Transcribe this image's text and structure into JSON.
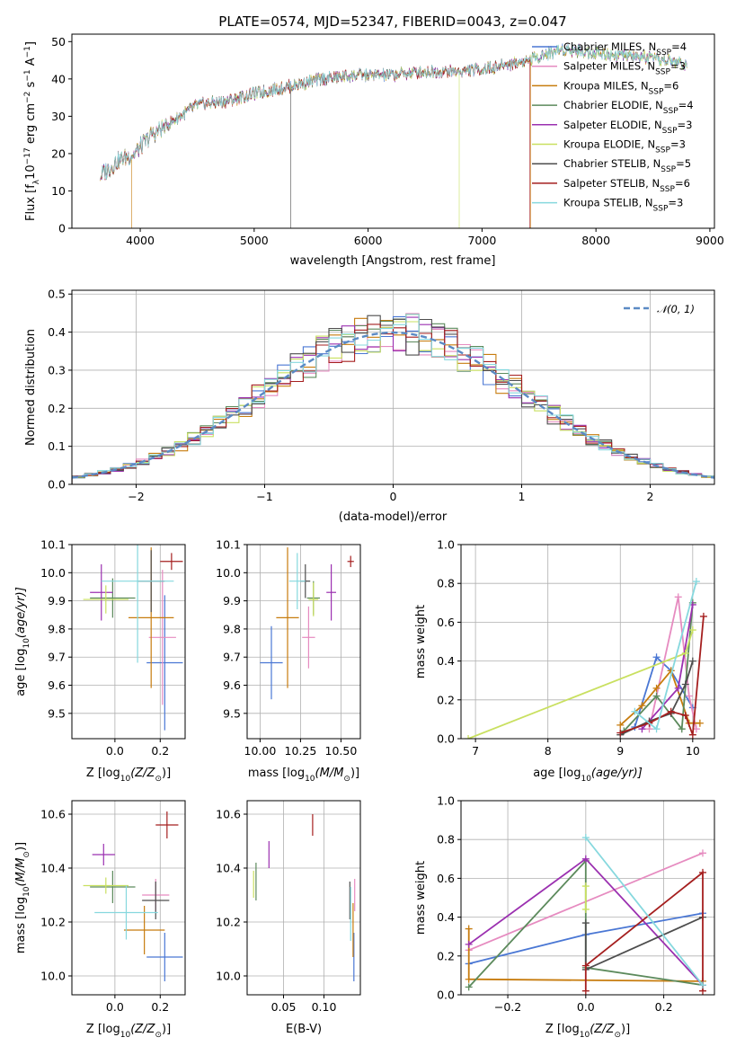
{
  "title": "PLATE=0574, MJD=52347, FIBERID=0043, z=0.047",
  "models": [
    {
      "name": "Chabrier MILES, N",
      "nssp": "=4",
      "color": "#4a77d4"
    },
    {
      "name": "Salpeter MILES, N",
      "nssp": "=3",
      "color": "#e68bc0"
    },
    {
      "name": "Kroupa MILES, N",
      "nssp": "=6",
      "color": "#c77c0e"
    },
    {
      "name": "Chabrier ELODIE, N",
      "nssp": "=4",
      "color": "#5c8a5c"
    },
    {
      "name": "Salpeter ELODIE, N",
      "nssp": "=3",
      "color": "#9b30b0"
    },
    {
      "name": "Kroupa ELODIE, N",
      "nssp": "=3",
      "color": "#c9e060"
    },
    {
      "name": "Chabrier STELIB, N",
      "nssp": "=5",
      "color": "#4d4d4d"
    },
    {
      "name": "Salpeter STELIB, N",
      "nssp": "=6",
      "color": "#a51f1f"
    },
    {
      "name": "Kroupa STELIB, N",
      "nssp": "=3",
      "color": "#86d8de"
    }
  ],
  "nssp_sub": "SSP",
  "chart_data": [
    {
      "id": "spectrum",
      "type": "line",
      "xlabel": "wavelength [Angstrom, rest frame]",
      "ylabel": "Flux [f",
      "ylabel_parts": [
        "Flux [f",
        "λ",
        "10",
        "−17",
        " erg cm",
        "−2",
        " s",
        "−1",
        " A",
        "−1",
        "]"
      ],
      "xlim": [
        3400,
        9040
      ],
      "ylim": [
        0,
        52
      ],
      "xticks": [
        4000,
        5000,
        6000,
        7000,
        8000,
        9000
      ],
      "yticks": [
        0,
        10,
        20,
        30,
        40,
        50
      ],
      "continuum_x": [
        3650,
        3800,
        3950,
        4100,
        4300,
        4500,
        4750,
        5000,
        5300,
        5600,
        5900,
        6200,
        6500,
        6800,
        7100,
        7400,
        7700,
        8000,
        8300,
        8600,
        8800
      ],
      "continuum_y": [
        14,
        18,
        20,
        25,
        29,
        33,
        34,
        36,
        38,
        40,
        41,
        41,
        42,
        42,
        43,
        45,
        48,
        47,
        46,
        45,
        44
      ],
      "dropouts": [
        {
          "model": 2,
          "x": 3925,
          "to": 0
        },
        {
          "model": 6,
          "x": 5320,
          "to": 0
        },
        {
          "model": 5,
          "x": 6800,
          "to": 0
        },
        {
          "model": 7,
          "x": 7420,
          "to": 0
        },
        {
          "model": 2,
          "x": 7425,
          "to": 0
        }
      ],
      "spectrum_end": {
        "default": 8800,
        "truncated": [
          {
            "model": 7,
            "x": 7420
          }
        ]
      },
      "legend_loc": "upper-right",
      "grid": false
    },
    {
      "id": "residuals",
      "type": "histogram",
      "xlabel": "(data-model)/error",
      "ylabel": "Normed distribution",
      "xlim": [
        -2.5,
        2.5
      ],
      "ylim": [
        0,
        0.51
      ],
      "xticks": [
        -2,
        -1,
        0,
        1,
        2
      ],
      "yticks": [
        0,
        0.1,
        0.2,
        0.3,
        0.4,
        0.5
      ],
      "bin_width": 0.1,
      "bin_start": -2.5,
      "reference": {
        "label": "𝒩(0, 1)",
        "type": "dashed",
        "color": "#5b8ac4"
      },
      "grid": true
    },
    {
      "id": "z-age",
      "type": "scatter-errorbar",
      "xlabel": "Z [log",
      "xlabel_parts": [
        "Z [log",
        "10",
        "(Z/Z",
        "⊙",
        ")]"
      ],
      "ylabel_parts": [
        "age  [log",
        "10",
        "(age/yr)]"
      ],
      "xlim": [
        -0.19,
        0.31
      ],
      "ylim": [
        9.41,
        10.1
      ],
      "xticks": [
        0.0,
        0.2
      ],
      "yticks": [
        9.5,
        9.6,
        9.7,
        9.8,
        9.9,
        10.0,
        10.1
      ],
      "points": [
        {
          "model": 0,
          "x": 0.22,
          "xe": 0.08,
          "y": 9.68,
          "ye": 0.24
        },
        {
          "model": 1,
          "x": 0.21,
          "xe": 0.06,
          "y": 9.77,
          "ye": 0.24
        },
        {
          "model": 2,
          "x": 0.16,
          "xe": 0.1,
          "y": 9.84,
          "ye": 0.25
        },
        {
          "model": 3,
          "x": -0.01,
          "xe": 0.1,
          "y": 9.91,
          "ye": 0.07
        },
        {
          "model": 4,
          "x": -0.06,
          "xe": 0.05,
          "y": 9.93,
          "ye": 0.1
        },
        {
          "model": 5,
          "x": -0.04,
          "xe": 0.1,
          "y": 9.905,
          "ye": 0.05
        },
        {
          "model": 6,
          "x": 0.16,
          "xe": 0.06,
          "y": 9.97,
          "ye": 0.11
        },
        {
          "model": 7,
          "x": 0.25,
          "xe": 0.05,
          "y": 10.04,
          "ye": 0.03
        },
        {
          "model": 8,
          "x": 0.1,
          "xe": 0.16,
          "y": 9.97,
          "ye": 0.29
        }
      ]
    },
    {
      "id": "mass-age",
      "type": "scatter-errorbar",
      "xlabel_parts": [
        "mass [log",
        "10",
        "(M/M",
        "⊙",
        ")]"
      ],
      "xlim": [
        9.92,
        10.62
      ],
      "ylim": [
        9.41,
        10.1
      ],
      "xticks": [
        10.0,
        10.25,
        10.5
      ],
      "xtick_labels": [
        "10.00",
        "10.25",
        "10.50"
      ],
      "yticks": [
        9.5,
        9.6,
        9.7,
        9.8,
        9.9,
        10.0,
        10.1
      ],
      "points": [
        {
          "model": 0,
          "x": 10.07,
          "xe": 0.07,
          "y": 9.68,
          "ye": 0.13
        },
        {
          "model": 1,
          "x": 10.3,
          "xe": 0.04,
          "y": 9.77,
          "ye": 0.11
        },
        {
          "model": 2,
          "x": 10.17,
          "xe": 0.07,
          "y": 9.84,
          "ye": 0.25
        },
        {
          "model": 3,
          "x": 10.33,
          "xe": 0.04,
          "y": 9.91,
          "ye": 0.06
        },
        {
          "model": 4,
          "x": 10.44,
          "xe": 0.03,
          "y": 9.93,
          "ye": 0.1
        },
        {
          "model": 5,
          "x": 10.33,
          "xe": 0.03,
          "y": 9.905,
          "ye": 0.06
        },
        {
          "model": 6,
          "x": 10.28,
          "xe": 0.03,
          "y": 9.97,
          "ye": 0.06
        },
        {
          "model": 7,
          "x": 10.56,
          "xe": 0.02,
          "y": 10.04,
          "ye": 0.02
        },
        {
          "model": 8,
          "x": 10.23,
          "xe": 0.05,
          "y": 9.97,
          "ye": 0.1
        }
      ]
    },
    {
      "id": "age-weight",
      "type": "line",
      "xlabel_parts": [
        "age  [log",
        "10",
        "(age/yr)]"
      ],
      "ylabel": "mass weight",
      "xlim": [
        6.8,
        10.3
      ],
      "ylim": [
        0,
        1.0
      ],
      "xticks": [
        7,
        8,
        9,
        10
      ],
      "yticks": [
        0,
        0.2,
        0.4,
        0.6,
        0.8,
        1.0
      ],
      "grid": true,
      "series": [
        {
          "model": 0,
          "x": [
            9.2,
            9.5,
            9.7,
            10.0
          ],
          "y": [
            0.06,
            0.42,
            0.35,
            0.16
          ]
        },
        {
          "model": 1,
          "x": [
            9.4,
            9.8,
            9.95,
            10.05
          ],
          "y": [
            0.05,
            0.73,
            0.22,
            0.05
          ]
        },
        {
          "model": 2,
          "x": [
            9.0,
            9.3,
            9.5,
            9.7,
            9.95,
            10.1
          ],
          "y": [
            0.07,
            0.17,
            0.26,
            0.35,
            0.08,
            0.08
          ]
        },
        {
          "model": 3,
          "x": [
            9.05,
            9.5,
            9.85,
            10.0
          ],
          "y": [
            0.04,
            0.22,
            0.05,
            0.7
          ]
        },
        {
          "model": 4,
          "x": [
            9.3,
            9.8,
            10.0
          ],
          "y": [
            0.05,
            0.26,
            0.69
          ]
        },
        {
          "model": 5,
          "x": [
            6.9,
            9.9,
            10.0
          ],
          "y": [
            0.0,
            0.44,
            0.56
          ]
        },
        {
          "model": 6,
          "x": [
            9.0,
            9.4,
            9.7,
            9.9,
            10.0
          ],
          "y": [
            0.02,
            0.09,
            0.13,
            0.28,
            0.4
          ]
        },
        {
          "model": 7,
          "x": [
            9.0,
            9.4,
            9.7,
            9.9,
            10.0,
            10.15
          ],
          "y": [
            0.03,
            0.08,
            0.14,
            0.12,
            0.02,
            0.63
          ]
        },
        {
          "model": 8,
          "x": [
            9.2,
            9.5,
            10.05
          ],
          "y": [
            0.14,
            0.05,
            0.81
          ]
        }
      ]
    },
    {
      "id": "z-mass",
      "type": "scatter-errorbar",
      "xlabel_parts": [
        "Z [log",
        "10",
        "(Z/Z",
        "⊙",
        ")]"
      ],
      "ylabel_parts": [
        "mass [log",
        "10",
        "(M/M",
        "⊙",
        ")]"
      ],
      "xlim": [
        -0.19,
        0.31
      ],
      "ylim": [
        9.93,
        10.65
      ],
      "xticks": [
        0.0,
        0.2
      ],
      "yticks": [
        10.0,
        10.2,
        10.4,
        10.6
      ],
      "points": [
        {
          "model": 0,
          "x": 0.22,
          "xe": 0.08,
          "y": 10.07,
          "ye": 0.09
        },
        {
          "model": 1,
          "x": 0.18,
          "xe": 0.06,
          "y": 10.3,
          "ye": 0.06
        },
        {
          "model": 2,
          "x": 0.13,
          "xe": 0.09,
          "y": 10.17,
          "ye": 0.09
        },
        {
          "model": 3,
          "x": -0.01,
          "xe": 0.1,
          "y": 10.33,
          "ye": 0.06
        },
        {
          "model": 4,
          "x": -0.05,
          "xe": 0.05,
          "y": 10.45,
          "ye": 0.04
        },
        {
          "model": 5,
          "x": -0.04,
          "xe": 0.1,
          "y": 10.335,
          "ye": 0.03
        },
        {
          "model": 6,
          "x": 0.18,
          "xe": 0.06,
          "y": 10.28,
          "ye": 0.07
        },
        {
          "model": 7,
          "x": 0.23,
          "xe": 0.05,
          "y": 10.56,
          "ye": 0.05
        },
        {
          "model": 8,
          "x": 0.05,
          "xe": 0.14,
          "y": 10.235,
          "ye": 0.1
        }
      ]
    },
    {
      "id": "ebv-mass",
      "type": "scatter-errorbar",
      "xlabel": "E(B-V)",
      "xlim": [
        0.005,
        0.145
      ],
      "ylim": [
        9.93,
        10.65
      ],
      "xticks": [
        0.05,
        0.1
      ],
      "xtick_labels": [
        "0.05",
        "0.10"
      ],
      "yticks": [
        10.0,
        10.2,
        10.4,
        10.6
      ],
      "points": [
        {
          "model": 0,
          "x": 0.137,
          "y": 10.07,
          "ye": 0.09
        },
        {
          "model": 1,
          "x": 0.138,
          "y": 10.3,
          "ye": 0.06
        },
        {
          "model": 2,
          "x": 0.136,
          "y": 10.17,
          "ye": 0.1
        },
        {
          "model": 3,
          "x": 0.016,
          "y": 10.35,
          "ye": 0.07
        },
        {
          "model": 4,
          "x": 0.032,
          "y": 10.45,
          "ye": 0.05
        },
        {
          "model": 5,
          "x": 0.013,
          "y": 10.34,
          "ye": 0.05
        },
        {
          "model": 6,
          "x": 0.132,
          "y": 10.28,
          "ye": 0.07
        },
        {
          "model": 7,
          "x": 0.086,
          "y": 10.56,
          "ye": 0.04
        },
        {
          "model": 8,
          "x": 0.133,
          "y": 10.23,
          "ye": 0.1
        }
      ]
    },
    {
      "id": "z-weight",
      "type": "line",
      "xlabel_parts": [
        "Z [log",
        "10",
        "(Z/Z",
        "⊙",
        ")]"
      ],
      "ylabel": "mass weight",
      "xlim": [
        -0.32,
        0.33
      ],
      "ylim": [
        0,
        1.0
      ],
      "xticks": [
        -0.2,
        0.0,
        0.2
      ],
      "yticks": [
        0,
        0.2,
        0.4,
        0.6,
        0.8,
        1.0
      ],
      "grid": true,
      "series": [
        {
          "model": 0,
          "x": [
            -0.3,
            0.0,
            0.3
          ],
          "y": [
            0.16,
            0.31,
            0.42
          ]
        },
        {
          "model": 1,
          "x": [
            -0.3,
            0.3
          ],
          "y": [
            0.23,
            0.73
          ]
        },
        {
          "model": 2,
          "x": [
            -0.3,
            -0.3,
            0.3
          ],
          "y": [
            0.34,
            0.08,
            0.07
          ]
        },
        {
          "model": 3,
          "x": [
            -0.3,
            0.0,
            0.0,
            0.3
          ],
          "y": [
            0.04,
            0.69,
            0.14,
            0.05
          ]
        },
        {
          "model": 4,
          "x": [
            -0.3,
            0.0,
            0.3
          ],
          "y": [
            0.26,
            0.7,
            0.05
          ]
        },
        {
          "model": 5,
          "x": [
            0.0,
            0.0
          ],
          "y": [
            0.44,
            0.56
          ]
        },
        {
          "model": 6,
          "x": [
            0.0,
            0.0,
            0.3
          ],
          "y": [
            0.37,
            0.13,
            0.4
          ]
        },
        {
          "model": 7,
          "x": [
            0.0,
            0.0,
            0.3,
            0.3
          ],
          "y": [
            0.02,
            0.15,
            0.63,
            0.02
          ]
        },
        {
          "model": 8,
          "x": [
            0.0,
            0.3
          ],
          "y": [
            0.81,
            0.05
          ]
        }
      ]
    }
  ]
}
